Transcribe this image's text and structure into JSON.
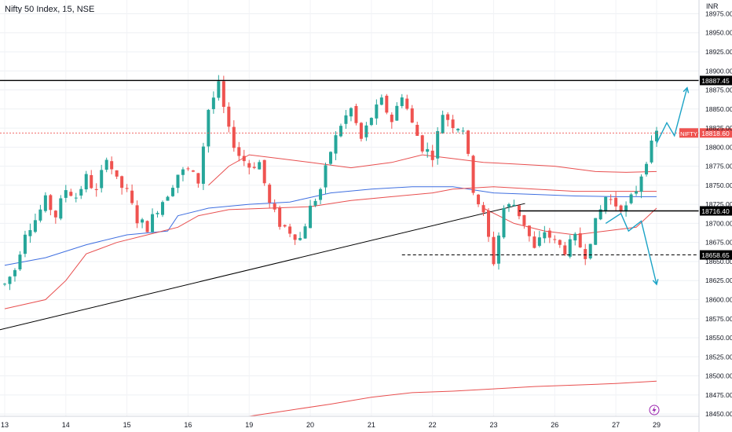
{
  "header": {
    "title": "Nifty 50 Index, 15, NSE",
    "currency": "INR"
  },
  "chart_data": {
    "type": "candlestick",
    "symbol_label": "NIFTY",
    "ylim": [
      18447,
      18993
    ],
    "y_ticks": [
      "18975.00",
      "18950.00",
      "18925.00",
      "18900.00",
      "18875.00",
      "18850.00",
      "18825.00",
      "18800.00",
      "18775.00",
      "18750.00",
      "18725.00",
      "18700.00",
      "18675.00",
      "18650.00",
      "18625.00",
      "18600.00",
      "18575.00",
      "18550.00",
      "18525.00",
      "18500.00",
      "18475.00",
      "18450.00"
    ],
    "x_ticks": [
      "13",
      "14",
      "15",
      "16",
      "19",
      "20",
      "21",
      "22",
      "23",
      "26",
      "27",
      "29"
    ],
    "colors": {
      "up": "#26a69a",
      "down": "#ef5350",
      "ma_red": "#e84f4f",
      "ma_blue": "#3f6fe0",
      "forecast_arrow": "#1ba3c6",
      "level_line": "#000000",
      "current_price": "#ef5350"
    },
    "level_labels": [
      {
        "name": "resistance",
        "price": 18887.45,
        "text": "18887.45",
        "style": "solid"
      },
      {
        "name": "current-price",
        "price": 18818.6,
        "text": "18818.60",
        "style": "dotted"
      },
      {
        "name": "support-1",
        "price": 18716.4,
        "text": "18716.40",
        "style": "solid"
      },
      {
        "name": "support-2",
        "price": 18658.65,
        "text": "18658.65",
        "style": "dashed"
      }
    ],
    "trendline": {
      "from": {
        "day": "13",
        "price": 18575
      },
      "to": {
        "day": "23",
        "price": 18722
      }
    },
    "candle_path": [
      [
        0,
        18620
      ],
      [
        2,
        18640
      ],
      [
        4,
        18690
      ],
      [
        6,
        18705
      ],
      [
        8,
        18730
      ],
      [
        10,
        18710
      ],
      [
        12,
        18745
      ],
      [
        14,
        18735
      ],
      [
        16,
        18760
      ],
      [
        18,
        18740
      ],
      [
        20,
        18790
      ],
      [
        22,
        18755
      ],
      [
        24,
        18740
      ],
      [
        26,
        18705
      ],
      [
        28,
        18695
      ],
      [
        30,
        18720
      ],
      [
        32,
        18740
      ],
      [
        34,
        18765
      ],
      [
        36,
        18770
      ],
      [
        38,
        18755
      ],
      [
        40,
        18850
      ],
      [
        42,
        18880
      ],
      [
        44,
        18820
      ],
      [
        46,
        18790
      ],
      [
        48,
        18775
      ],
      [
        50,
        18780
      ],
      [
        52,
        18725
      ],
      [
        54,
        18700
      ],
      [
        56,
        18690
      ],
      [
        58,
        18680
      ],
      [
        60,
        18720
      ],
      [
        62,
        18745
      ],
      [
        64,
        18795
      ],
      [
        66,
        18830
      ],
      [
        68,
        18850
      ],
      [
        70,
        18810
      ],
      [
        72,
        18840
      ],
      [
        74,
        18860
      ],
      [
        76,
        18835
      ],
      [
        78,
        18870
      ],
      [
        80,
        18830
      ],
      [
        82,
        18800
      ],
      [
        84,
        18790
      ],
      [
        86,
        18845
      ],
      [
        88,
        18830
      ],
      [
        90,
        18825
      ],
      [
        92,
        18745
      ],
      [
        94,
        18710
      ],
      [
        96,
        18650
      ],
      [
        98,
        18720
      ],
      [
        100,
        18725
      ],
      [
        102,
        18700
      ],
      [
        104,
        18665
      ],
      [
        106,
        18690
      ],
      [
        108,
        18675
      ],
      [
        110,
        18665
      ],
      [
        112,
        18680
      ],
      [
        114,
        18660
      ],
      [
        116,
        18700
      ],
      [
        118,
        18735
      ],
      [
        120,
        18725
      ],
      [
        122,
        18720
      ],
      [
        124,
        18745
      ],
      [
        126,
        18785
      ],
      [
        128,
        18818.6
      ]
    ],
    "moving_averages": [
      {
        "color": "ma_blue",
        "points": [
          [
            0,
            18645
          ],
          [
            8,
            18655
          ],
          [
            16,
            18672
          ],
          [
            24,
            18685
          ],
          [
            32,
            18690
          ],
          [
            34,
            18710
          ],
          [
            40,
            18720
          ],
          [
            48,
            18725
          ],
          [
            56,
            18728
          ],
          [
            64,
            18740
          ],
          [
            72,
            18745
          ],
          [
            80,
            18748
          ],
          [
            88,
            18748
          ],
          [
            96,
            18740
          ],
          [
            104,
            18738
          ],
          [
            112,
            18736
          ],
          [
            120,
            18735
          ],
          [
            128,
            18735
          ]
        ]
      },
      {
        "color": "ma_red",
        "points": [
          [
            0,
            18588
          ],
          [
            8,
            18600
          ],
          [
            12,
            18625
          ],
          [
            16,
            18660
          ],
          [
            22,
            18675
          ],
          [
            28,
            18685
          ],
          [
            34,
            18695
          ],
          [
            38,
            18710
          ],
          [
            44,
            18718
          ],
          [
            52,
            18720
          ],
          [
            60,
            18722
          ],
          [
            68,
            18730
          ],
          [
            76,
            18735
          ],
          [
            84,
            18740
          ],
          [
            88,
            18745
          ],
          [
            96,
            18748
          ],
          [
            104,
            18745
          ],
          [
            112,
            18742
          ],
          [
            120,
            18742
          ],
          [
            128,
            18742
          ]
        ]
      },
      {
        "color": "ma_red",
        "points": [
          [
            40,
            18750
          ],
          [
            44,
            18775
          ],
          [
            48,
            18790
          ],
          [
            54,
            18785
          ],
          [
            60,
            18780
          ],
          [
            68,
            18773
          ],
          [
            76,
            18780
          ],
          [
            82,
            18790
          ],
          [
            88,
            18785
          ],
          [
            94,
            18780
          ],
          [
            100,
            18778
          ],
          [
            108,
            18775
          ],
          [
            116,
            18768
          ],
          [
            122,
            18767
          ],
          [
            128,
            18768
          ]
        ]
      },
      {
        "color": "ma_red",
        "points": [
          [
            94,
            18720
          ],
          [
            100,
            18700
          ],
          [
            106,
            18690
          ],
          [
            112,
            18685
          ],
          [
            118,
            18690
          ],
          [
            124,
            18695
          ],
          [
            128,
            18720
          ]
        ]
      },
      {
        "color": "ma_red",
        "points": [
          [
            48,
            18447
          ],
          [
            56,
            18455
          ],
          [
            64,
            18463
          ],
          [
            72,
            18472
          ],
          [
            80,
            18478
          ],
          [
            88,
            18480
          ],
          [
            96,
            18483
          ],
          [
            104,
            18486
          ],
          [
            112,
            18488
          ],
          [
            120,
            18490
          ],
          [
            128,
            18493
          ]
        ]
      }
    ]
  }
}
